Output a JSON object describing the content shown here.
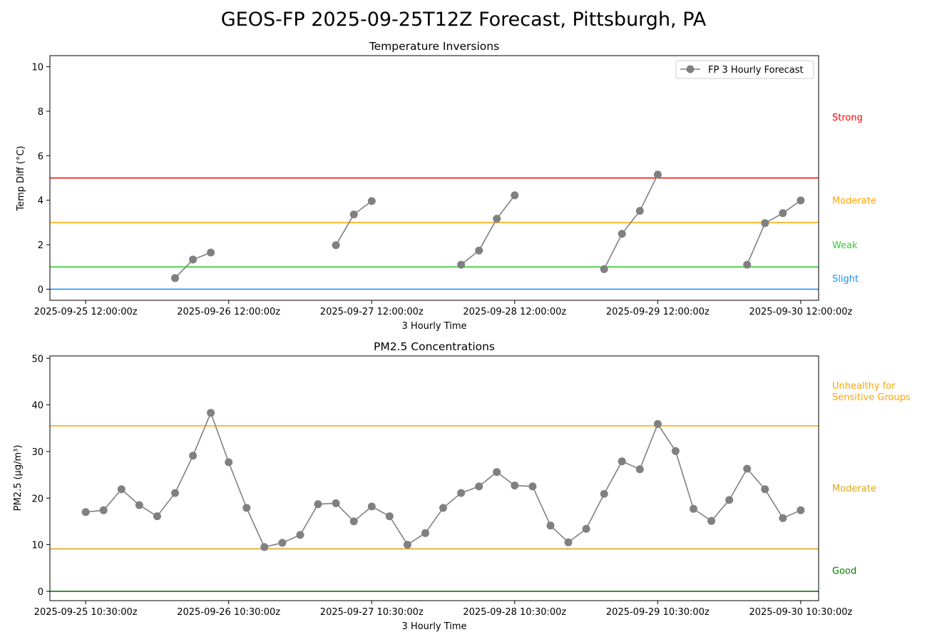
{
  "figure_title": "GEOS-FP 2025-09-25T12Z Forecast, Pittsburgh, PA",
  "chart_data": [
    {
      "type": "line",
      "title": "Temperature Inversions",
      "xlabel": "3 Hourly Time",
      "ylabel": "Temp Diff (°C)",
      "ylim": [
        -0.5,
        10.5
      ],
      "yticks": [
        0,
        2,
        4,
        6,
        8,
        10
      ],
      "xlim": [
        "2025-09-25 06:00:00z",
        "2025-09-30 15:00:00z"
      ],
      "xticks": [
        "2025-09-25 12:00:00z",
        "2025-09-26 12:00:00z",
        "2025-09-27 12:00:00z",
        "2025-09-28 12:00:00z",
        "2025-09-29 12:00:00z",
        "2025-09-30 12:00:00z"
      ],
      "legend": {
        "label": "FP 3 Hourly Forecast",
        "position": "top-right"
      },
      "grid": false,
      "series": [
        {
          "name": "FP 3 Hourly Forecast",
          "color": "#808080",
          "points": [
            {
              "x": "2025-09-26 03:00:00z",
              "y": 0.5
            },
            {
              "x": "2025-09-26 06:00:00z",
              "y": 1.33
            },
            {
              "x": "2025-09-26 09:00:00z",
              "y": 1.65
            },
            {
              "x": "2025-09-27 03:00:00z",
              "y": null
            },
            {
              "x": "2025-09-27 06:00:00z",
              "y": 1.98
            },
            {
              "x": "2025-09-27 09:00:00z",
              "y": 3.36
            },
            {
              "x": "2025-09-27 12:00:00z",
              "y": 3.96
            },
            {
              "x": "2025-09-28 03:00:00z",
              "y": null
            },
            {
              "x": "2025-09-28 03:00:00z",
              "y": 1.1
            },
            {
              "x": "2025-09-28 06:00:00z",
              "y": 1.74
            },
            {
              "x": "2025-09-28 09:00:00z",
              "y": 3.17
            },
            {
              "x": "2025-09-28 12:00:00z",
              "y": 4.22
            },
            {
              "x": "2025-09-29 03:00:00z",
              "y": null
            },
            {
              "x": "2025-09-29 03:00:00z",
              "y": 0.9
            },
            {
              "x": "2025-09-29 06:00:00z",
              "y": 2.49
            },
            {
              "x": "2025-09-29 09:00:00z",
              "y": 3.52
            },
            {
              "x": "2025-09-29 12:00:00z",
              "y": 5.15
            },
            {
              "x": "2025-09-30 03:00:00z",
              "y": null
            },
            {
              "x": "2025-09-30 03:00:00z",
              "y": 1.1
            },
            {
              "x": "2025-09-30 06:00:00z",
              "y": 2.97
            },
            {
              "x": "2025-09-30 09:00:00z",
              "y": 3.42
            },
            {
              "x": "2025-09-30 12:00:00z",
              "y": 3.99
            }
          ]
        }
      ],
      "thresholds": [
        {
          "y": 0,
          "color": "#1e90ff",
          "label": "Slight",
          "label_y": 0.5
        },
        {
          "y": 1,
          "color": "#32cd32",
          "label": "Weak",
          "label_y": 2.0
        },
        {
          "y": 3,
          "color": "#ffa500",
          "label": "Moderate",
          "label_y": 4.0
        },
        {
          "y": 5,
          "color": "#ff0000",
          "label": "Strong",
          "label_y": 7.75
        }
      ]
    },
    {
      "type": "line",
      "title": "PM2.5 Concentrations",
      "xlabel": "3 Hourly Time",
      "ylabel": "PM2.5 (µg/m³)",
      "ylim": [
        -2,
        50.5
      ],
      "yticks": [
        0,
        10,
        20,
        30,
        40,
        50
      ],
      "xlim": [
        "2025-09-25 04:30:00z",
        "2025-09-30 13:30:00z"
      ],
      "xticks": [
        "2025-09-25 10:30:00z",
        "2025-09-26 10:30:00z",
        "2025-09-27 10:30:00z",
        "2025-09-28 10:30:00z",
        "2025-09-29 10:30:00z",
        "2025-09-30 10:30:00z"
      ],
      "grid": false,
      "series": [
        {
          "name": "",
          "color": "#808080",
          "start": "2025-09-25 10:30:00z",
          "step_hours": 3,
          "values": [
            17.0,
            17.4,
            21.9,
            18.5,
            16.1,
            21.1,
            29.1,
            38.3,
            27.7,
            17.9,
            9.5,
            10.4,
            12.1,
            18.7,
            18.9,
            15.0,
            18.2,
            16.1,
            10.0,
            12.5,
            17.9,
            21.1,
            22.5,
            25.6,
            22.7,
            22.5,
            14.1,
            10.5,
            13.4,
            20.9,
            27.9,
            26.2,
            35.9,
            30.1,
            17.7,
            15.1,
            19.6,
            26.3,
            21.9,
            15.7,
            17.4
          ]
        }
      ],
      "thresholds": [
        {
          "y": 0,
          "color": "#008000",
          "label": "Good",
          "label_y": 4.5
        },
        {
          "y": 9.1,
          "color": "#daa520",
          "label": "Moderate",
          "label_y": 22.2
        },
        {
          "y": 35.5,
          "color": "#ffa500",
          "label": "Unhealthy for Sensitive Groups",
          "label_lines": [
            "Unhealthy for",
            "Sensitive Groups"
          ],
          "label_y": 43.0
        }
      ]
    }
  ]
}
